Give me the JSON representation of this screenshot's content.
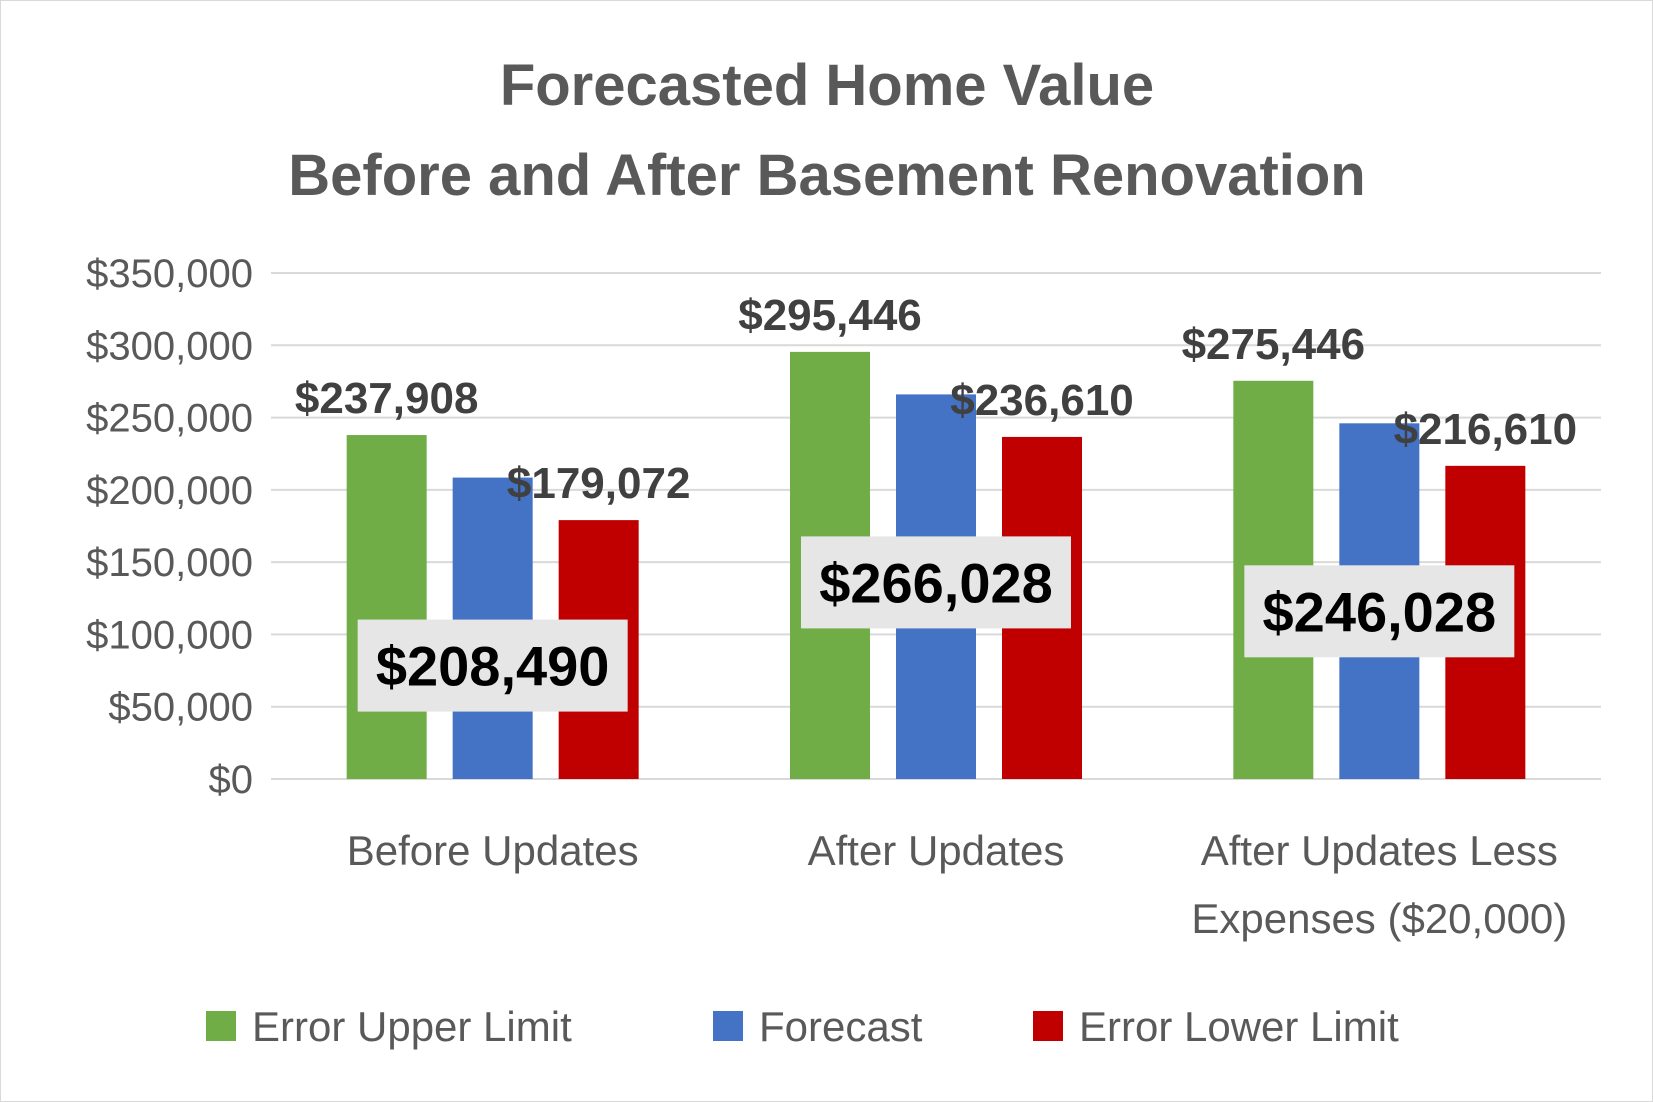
{
  "chart_data": {
    "type": "bar",
    "title": [
      "Forecasted Home Value",
      "Before and After Basement Renovation"
    ],
    "categories": [
      [
        "Before Updates"
      ],
      [
        "After Updates"
      ],
      [
        "After Updates Less",
        "Expenses ($20,000)"
      ]
    ],
    "series": [
      {
        "name": "Error Upper Limit",
        "color": "#70ad47",
        "values": [
          237908,
          295446,
          275446
        ],
        "labels": [
          "$237,908",
          "$295,446",
          "$275,446"
        ]
      },
      {
        "name": "Forecast",
        "color": "#4472c4",
        "values": [
          208490,
          266028,
          246028
        ],
        "labels": [
          "$208,490",
          "$266,028",
          "$246,028"
        ]
      },
      {
        "name": "Error Lower Limit",
        "color": "#c00000",
        "values": [
          179072,
          236610,
          216610
        ],
        "labels": [
          "$179,072",
          "$236,610",
          "$216,610"
        ]
      }
    ],
    "ylim": [
      0,
      350000
    ],
    "yticks": [
      0,
      50000,
      100000,
      150000,
      200000,
      250000,
      300000,
      350000
    ],
    "ytick_labels": [
      "$0",
      "$50,000",
      "$100,000",
      "$150,000",
      "$200,000",
      "$250,000",
      "$300,000",
      "$350,000"
    ],
    "grid": true,
    "legend_position": "bottom"
  }
}
